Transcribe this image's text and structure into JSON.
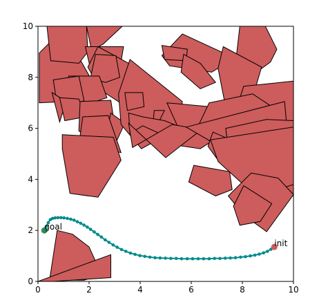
{
  "chart_data": {
    "type": "scatter",
    "title": "",
    "xlabel": "",
    "ylabel": "",
    "xlim": [
      0,
      10
    ],
    "ylim": [
      0,
      10
    ],
    "grid": false,
    "x_ticks": [
      "0",
      "2",
      "4",
      "6",
      "8",
      "10"
    ],
    "y_ticks": [
      "0",
      "2",
      "4",
      "6",
      "8",
      "10"
    ],
    "colors": {
      "obstacle_fill": "#cd5c5c",
      "obstacle_edge": "#000000",
      "path": "#008b8b",
      "goal": "#2e8b57",
      "init": "#cd5c5c"
    },
    "annotations": [
      {
        "text": "goal",
        "x": 0.25,
        "y": 2.0
      },
      {
        "text": "init",
        "x": 9.25,
        "y": 1.35
      }
    ],
    "goal": {
      "x": 0.25,
      "y": 2.0
    },
    "init": {
      "x": 9.25,
      "y": 1.35
    },
    "path": {
      "x": [
        0.25,
        0.32,
        0.4,
        0.48,
        0.57,
        0.67,
        0.78,
        0.9,
        1.02,
        1.15,
        1.28,
        1.41,
        1.54,
        1.67,
        1.8,
        1.93,
        2.06,
        2.2,
        2.34,
        2.48,
        2.63,
        2.78,
        2.94,
        3.1,
        3.27,
        3.44,
        3.62,
        3.8,
        3.99,
        4.18,
        4.38,
        4.58,
        4.78,
        4.99,
        5.2,
        5.41,
        5.62,
        5.84,
        6.05,
        6.27,
        6.48,
        6.7,
        6.91,
        7.12,
        7.33,
        7.53,
        7.73,
        7.93,
        8.12,
        8.31,
        8.49,
        8.66,
        8.83,
        8.98,
        9.12,
        9.25
      ],
      "y": [
        2.0,
        2.15,
        2.3,
        2.42,
        2.47,
        2.49,
        2.5,
        2.5,
        2.49,
        2.47,
        2.44,
        2.4,
        2.34,
        2.28,
        2.21,
        2.13,
        2.04,
        1.94,
        1.84,
        1.74,
        1.63,
        1.53,
        1.43,
        1.34,
        1.25,
        1.18,
        1.11,
        1.06,
        1.01,
        0.98,
        0.95,
        0.93,
        0.92,
        0.91,
        0.9,
        0.9,
        0.89,
        0.89,
        0.89,
        0.89,
        0.89,
        0.89,
        0.9,
        0.9,
        0.91,
        0.92,
        0.93,
        0.95,
        0.97,
        1.0,
        1.03,
        1.07,
        1.12,
        1.18,
        1.26,
        1.35
      ]
    },
    "obstacles": [
      [
        [
          0.55,
          9.45
        ],
        [
          1.45,
          9.05
        ],
        [
          2.15,
          7.8
        ],
        [
          1.1,
          7.05
        ],
        [
          0.05,
          7.0
        ],
        [
          0.05,
          8.95
        ]
      ],
      [
        [
          0.35,
          10.0
        ],
        [
          1.9,
          10.0
        ],
        [
          1.95,
          9.0
        ],
        [
          1.6,
          8.55
        ],
        [
          0.5,
          8.65
        ]
      ],
      [
        [
          1.9,
          10.0
        ],
        [
          3.3,
          10.0
        ],
        [
          2.55,
          9.3
        ],
        [
          2.1,
          9.05
        ]
      ],
      [
        [
          1.85,
          9.2
        ],
        [
          3.35,
          9.2
        ],
        [
          3.15,
          8.0
        ],
        [
          2.1,
          8.15
        ]
      ],
      [
        [
          2.35,
          9.2
        ],
        [
          3.55,
          8.55
        ],
        [
          4.4,
          7.85
        ],
        [
          3.3,
          6.95
        ],
        [
          2.45,
          7.5
        ],
        [
          1.95,
          8.4
        ]
      ],
      [
        [
          2.25,
          8.9
        ],
        [
          3.05,
          8.85
        ],
        [
          3.2,
          8.0
        ],
        [
          2.65,
          7.8
        ],
        [
          2.05,
          7.95
        ]
      ],
      [
        [
          1.2,
          8.05
        ],
        [
          2.4,
          8.05
        ],
        [
          2.7,
          7.2
        ],
        [
          1.95,
          6.95
        ],
        [
          1.15,
          7.05
        ]
      ],
      [
        [
          0.6,
          7.9
        ],
        [
          1.6,
          8.05
        ],
        [
          1.8,
          7.1
        ],
        [
          1.3,
          6.6
        ],
        [
          0.75,
          6.9
        ]
      ],
      [
        [
          0.55,
          7.4
        ],
        [
          0.85,
          6.25
        ],
        [
          1.1,
          7.05
        ]
      ],
      [
        [
          0.85,
          7.2
        ],
        [
          1.6,
          7.15
        ],
        [
          1.85,
          6.45
        ],
        [
          1.05,
          6.3
        ]
      ],
      [
        [
          1.65,
          7.05
        ],
        [
          2.85,
          7.1
        ],
        [
          3.05,
          5.8
        ],
        [
          2.35,
          5.3
        ],
        [
          1.6,
          5.9
        ]
      ],
      [
        [
          2.85,
          6.6
        ],
        [
          3.4,
          6.2
        ],
        [
          3.1,
          5.55
        ],
        [
          2.7,
          5.9
        ]
      ],
      [
        [
          1.75,
          6.45
        ],
        [
          2.75,
          6.5
        ],
        [
          3.25,
          5.05
        ],
        [
          2.6,
          5.2
        ],
        [
          1.65,
          5.7
        ]
      ],
      [
        [
          3.6,
          8.7
        ],
        [
          5.65,
          7.05
        ],
        [
          5.5,
          6.0
        ],
        [
          4.05,
          5.2
        ],
        [
          3.25,
          6.15
        ],
        [
          3.15,
          7.35
        ]
      ],
      [
        [
          3.4,
          7.4
        ],
        [
          4.1,
          7.4
        ],
        [
          4.15,
          6.85
        ],
        [
          3.5,
          6.7
        ]
      ],
      [
        [
          4.55,
          6.7
        ],
        [
          4.95,
          6.7
        ],
        [
          4.75,
          6.3
        ],
        [
          4.5,
          6.15
        ]
      ],
      [
        [
          3.55,
          6.6
        ],
        [
          4.1,
          6.45
        ],
        [
          4.95,
          6.3
        ],
        [
          5.95,
          5.9
        ],
        [
          5.85,
          5.3
        ],
        [
          4.1,
          6.1
        ],
        [
          3.6,
          5.8
        ]
      ],
      [
        [
          5.05,
          7.0
        ],
        [
          6.7,
          6.85
        ],
        [
          7.35,
          5.85
        ],
        [
          6.35,
          5.2
        ],
        [
          5.35,
          5.35
        ],
        [
          5.5,
          6.0
        ]
      ],
      [
        [
          5.0,
          4.85
        ],
        [
          6.4,
          5.95
        ],
        [
          5.25,
          6.15
        ],
        [
          3.7,
          5.25
        ],
        [
          3.55,
          6.2
        ]
      ],
      [
        [
          0.95,
          5.75
        ],
        [
          2.95,
          5.65
        ],
        [
          3.25,
          4.75
        ],
        [
          2.35,
          3.3
        ],
        [
          1.25,
          3.45
        ],
        [
          0.95,
          5.2
        ]
      ],
      [
        [
          5.65,
          9.7
        ],
        [
          7.7,
          8.75
        ],
        [
          6.8,
          8.2
        ],
        [
          5.15,
          8.45
        ],
        [
          4.85,
          8.85
        ]
      ],
      [
        [
          4.85,
          9.25
        ],
        [
          5.85,
          9.1
        ],
        [
          5.8,
          8.65
        ],
        [
          4.95,
          8.7
        ]
      ],
      [
        [
          5.7,
          8.9
        ],
        [
          6.35,
          8.55
        ],
        [
          6.95,
          7.8
        ],
        [
          6.35,
          7.55
        ],
        [
          5.6,
          8.2
        ]
      ],
      [
        [
          7.9,
          10.0
        ],
        [
          8.9,
          10.0
        ],
        [
          9.35,
          9.1
        ],
        [
          9.1,
          8.6
        ],
        [
          8.35,
          8.05
        ],
        [
          7.75,
          8.7
        ]
      ],
      [
        [
          7.25,
          9.2
        ],
        [
          8.75,
          8.4
        ],
        [
          8.3,
          6.85
        ],
        [
          7.4,
          6.55
        ],
        [
          7.05,
          8.35
        ]
      ],
      [
        [
          8.05,
          7.65
        ],
        [
          10.0,
          7.85
        ],
        [
          10.0,
          6.05
        ],
        [
          8.9,
          5.85
        ],
        [
          7.75,
          6.7
        ]
      ],
      [
        [
          6.7,
          7.0
        ],
        [
          8.4,
          7.35
        ],
        [
          9.3,
          6.75
        ],
        [
          9.7,
          6.2
        ],
        [
          10.0,
          5.45
        ],
        [
          8.3,
          5.1
        ],
        [
          6.8,
          5.4
        ],
        [
          6.25,
          6.05
        ]
      ],
      [
        [
          5.8,
          6.05
        ],
        [
          9.65,
          7.05
        ],
        [
          9.75,
          5.95
        ],
        [
          9.5,
          5.3
        ],
        [
          8.5,
          5.3
        ],
        [
          7.0,
          5.35
        ]
      ],
      [
        [
          7.35,
          6.0
        ],
        [
          8.95,
          6.35
        ],
        [
          10.0,
          6.3
        ],
        [
          10.0,
          3.35
        ],
        [
          9.1,
          3.45
        ],
        [
          8.0,
          4.5
        ],
        [
          7.45,
          5.15
        ]
      ],
      [
        [
          6.85,
          5.85
        ],
        [
          8.0,
          5.35
        ],
        [
          7.6,
          4.45
        ],
        [
          7.05,
          4.75
        ],
        [
          6.65,
          5.3
        ]
      ],
      [
        [
          6.75,
          5.55
        ],
        [
          10.0,
          6.05
        ],
        [
          10.0,
          3.8
        ],
        [
          8.9,
          3.45
        ],
        [
          8.2,
          3.65
        ],
        [
          7.05,
          4.7
        ]
      ],
      [
        [
          8.35,
          4.25
        ],
        [
          9.4,
          4.05
        ],
        [
          10.0,
          3.4
        ],
        [
          8.95,
          1.95
        ],
        [
          8.05,
          2.6
        ],
        [
          7.45,
          3.35
        ]
      ],
      [
        [
          8.05,
          3.75
        ],
        [
          9.15,
          3.05
        ],
        [
          8.7,
          2.35
        ],
        [
          7.9,
          2.2
        ],
        [
          7.65,
          2.95
        ]
      ],
      [
        [
          6.1,
          4.55
        ],
        [
          7.5,
          4.3
        ],
        [
          7.6,
          3.6
        ],
        [
          6.95,
          3.35
        ],
        [
          5.9,
          3.9
        ]
      ],
      [
        [
          0.75,
          2.0
        ],
        [
          1.35,
          1.85
        ],
        [
          2.0,
          1.35
        ],
        [
          2.5,
          0.25
        ],
        [
          1.8,
          0.05
        ],
        [
          0.45,
          0.05
        ]
      ],
      [
        [
          0.0,
          0.0
        ],
        [
          2.85,
          1.05
        ],
        [
          2.85,
          0.15
        ],
        [
          0.6,
          0.0
        ]
      ]
    ]
  }
}
